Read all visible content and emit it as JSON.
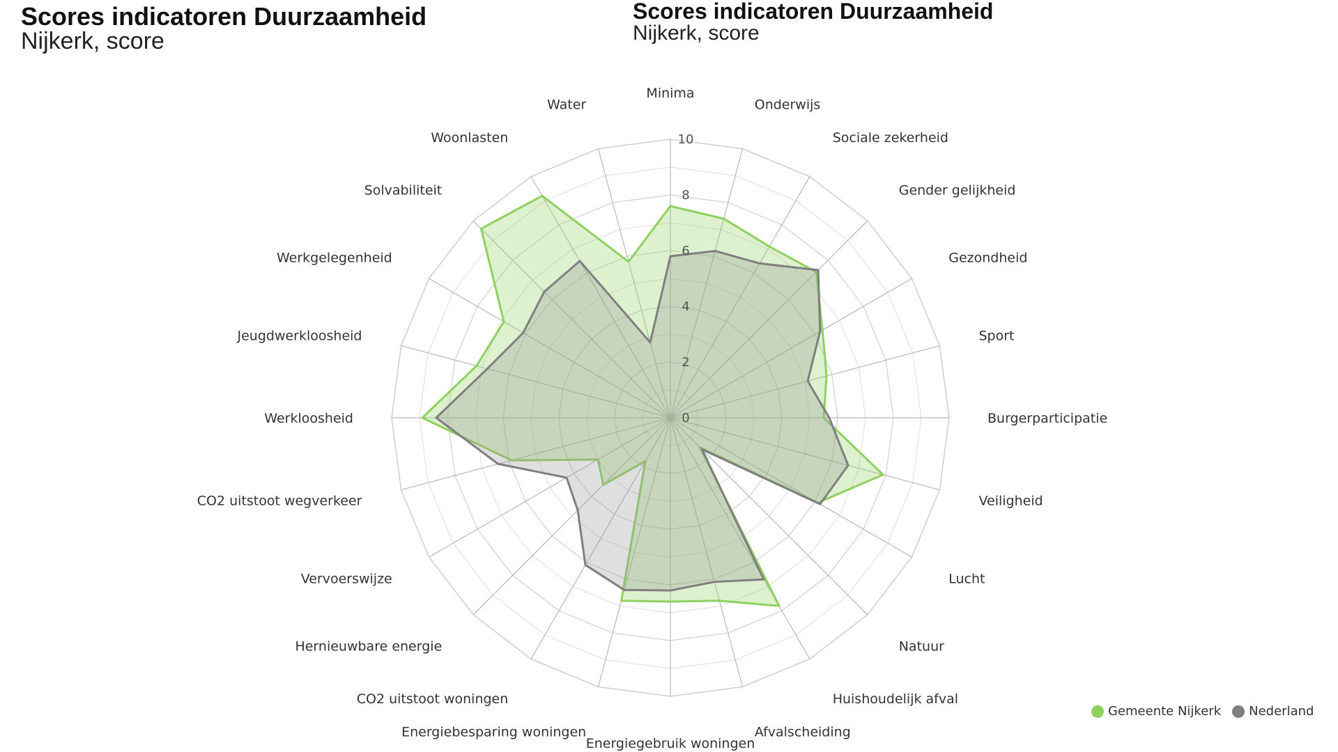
{
  "titles": [
    {
      "title": "Scores indicatoren Duurzaamheid",
      "subtitle": "Nijkerk, score"
    },
    {
      "title": "Scores indicatoren Duurzaamheid",
      "subtitle": "Nijkerk, score"
    }
  ],
  "chart_data": {
    "type": "radar",
    "categories": [
      "Minima",
      "Onderwijs",
      "Sociale zekerheid",
      "Gender gelijkheid",
      "Gezondheid",
      "Sport",
      "Burgerparticipatie",
      "Veiligheid",
      "Lucht",
      "Natuur",
      "Huishoudelijk afval",
      "Afvalscheiding",
      "Energiegebruik woningen",
      "Energiebesparing woningen",
      "CO2 uitstoot woningen",
      "Hernieuwbare energie",
      "Vervoerswijze",
      "CO2 uitstoot wegverkeer",
      "Werkloosheid",
      "Jeugdwerkloosheid",
      "Werkgelegenheid",
      "Solvabiliteit",
      "Woonlasten",
      "Water"
    ],
    "ticks": [
      "0",
      "2",
      "4",
      "6",
      "8",
      "10"
    ],
    "rlim": [
      0,
      10
    ],
    "series": [
      {
        "name": "Gemeente Nijkerk",
        "color": "#8fd160",
        "fill": "rgba(143,209,96,0.3)",
        "values": [
          7.6,
          7.4,
          7.1,
          7.4,
          6.3,
          5.8,
          5.5,
          7.9,
          6.1,
          1.5,
          7.8,
          6.8,
          6.6,
          6.8,
          1.8,
          3.4,
          3.0,
          5.9,
          8.9,
          7.2,
          6.9,
          9.6,
          9.2,
          5.8
        ]
      },
      {
        "name": "Nederland",
        "color": "#7f7f7f",
        "fill": "rgba(150,150,150,0.3)",
        "values": [
          5.8,
          6.2,
          6.4,
          7.5,
          6.2,
          5.1,
          5.7,
          6.6,
          6.2,
          1.6,
          6.7,
          6.1,
          6.2,
          6.4,
          6.1,
          4.7,
          4.3,
          6.4,
          8.4,
          6.8,
          6.1,
          6.4,
          6.5,
          2.8
        ]
      }
    ],
    "legend_position": "bottom-right"
  }
}
